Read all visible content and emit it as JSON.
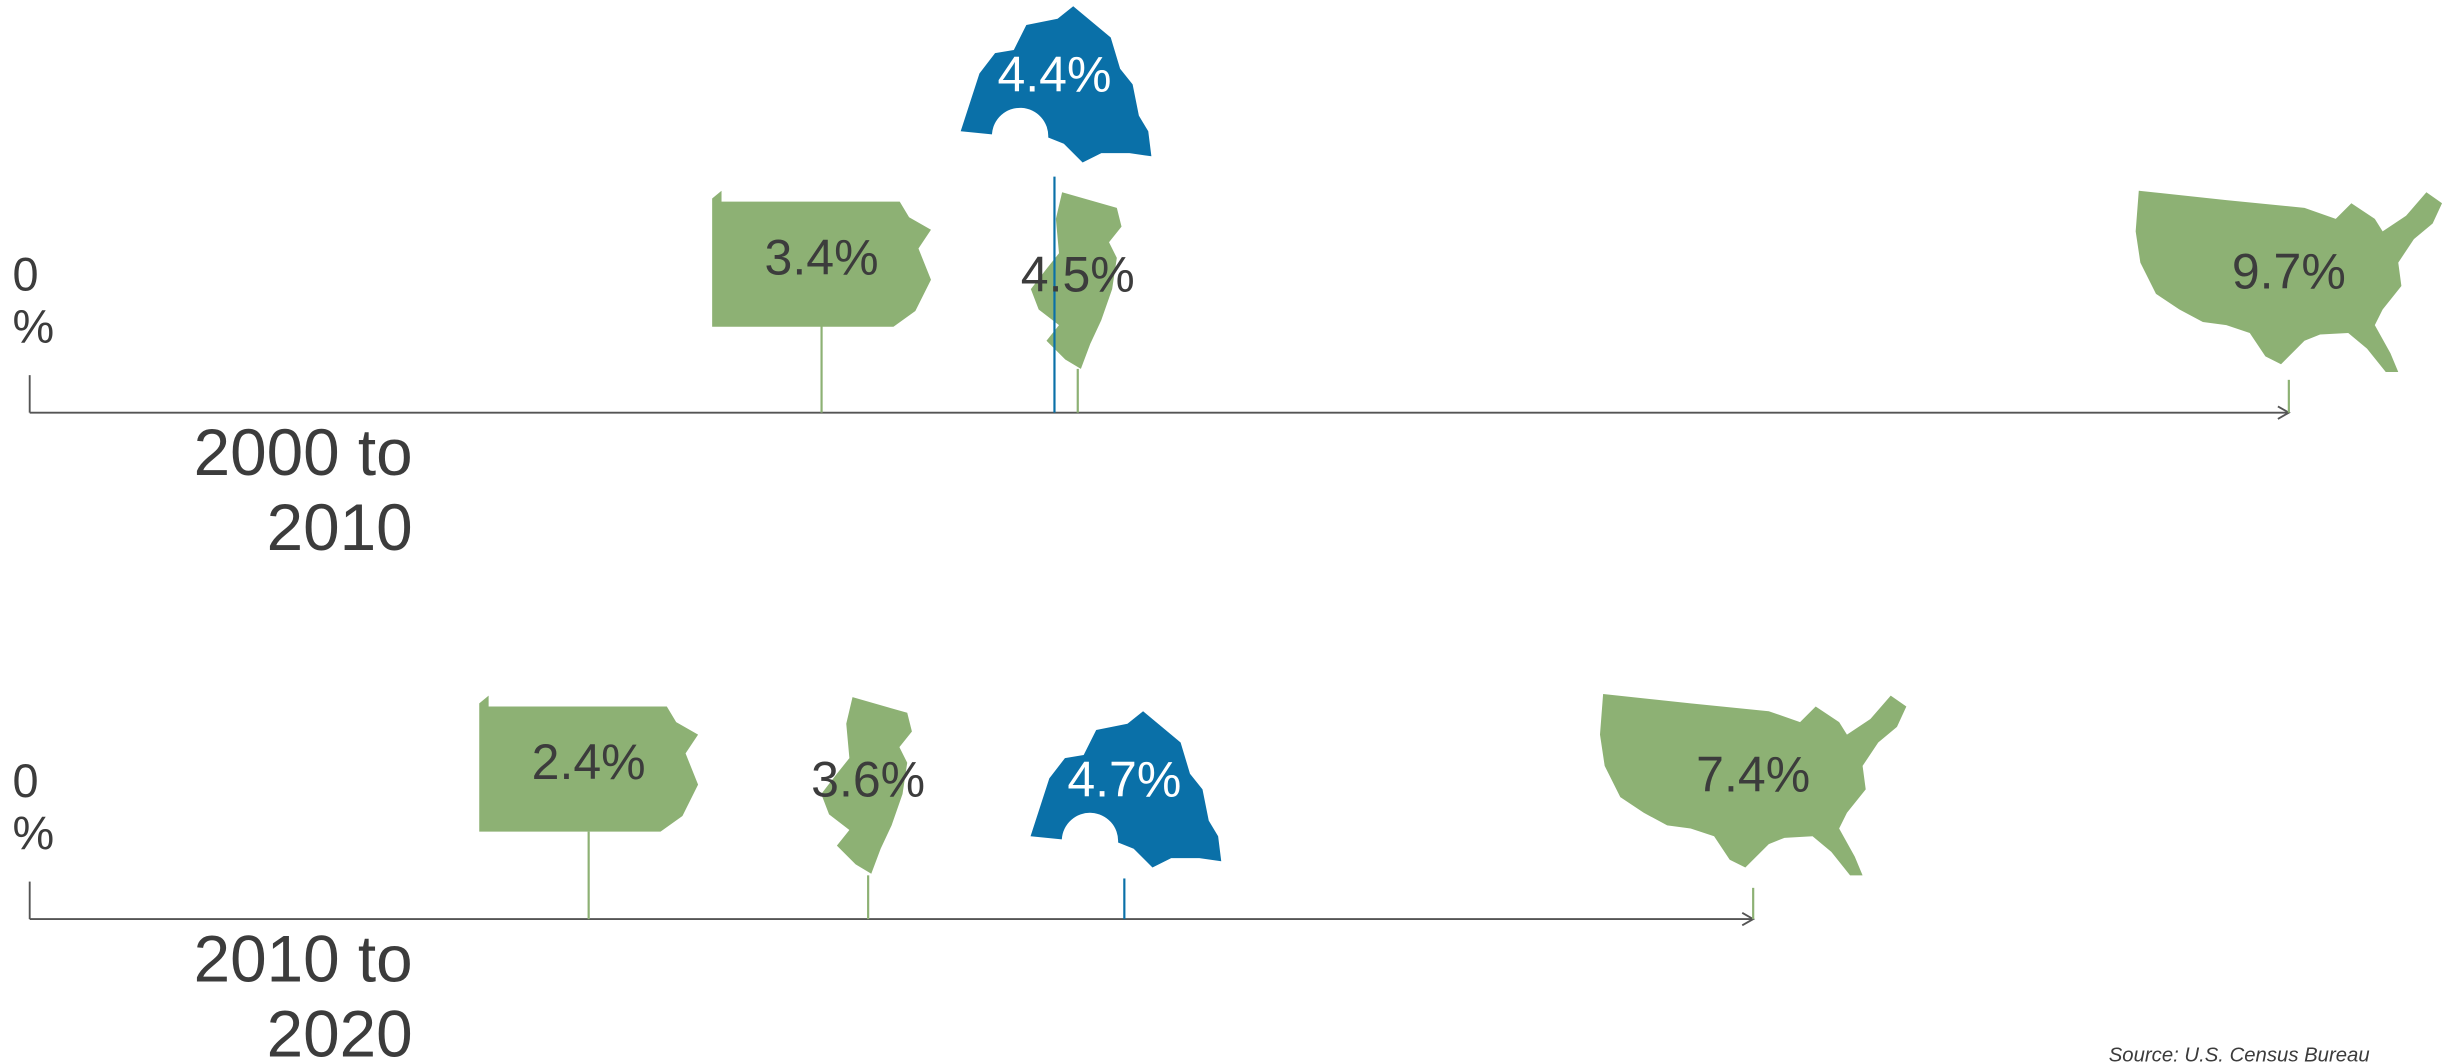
{
  "source": "Source: U.S. Census Bureau",
  "chart_data": [
    {
      "type": "lollipop",
      "label": "2000 to 2010",
      "values": [
        3.4,
        4.5,
        4.4,
        9.7
      ],
      "value_labels": [
        "3.4%",
        "4.5%",
        "4.4%",
        "9.7%"
      ],
      "colors": [
        "#8db174",
        "#8db174",
        "#0a70a8",
        "#8db174"
      ],
      "xlim": [
        0,
        9.7
      ],
      "xticks": [
        {
          "value": 0,
          "label": "0 %"
        }
      ]
    },
    {
      "type": "lollipop",
      "label": "2010 to 2020",
      "values": [
        2.4,
        3.6,
        4.7,
        7.4
      ],
      "value_labels": [
        "2.4%",
        "3.6%",
        "4.7%",
        "7.4%"
      ],
      "colors": [
        "#8db174",
        "#8db174",
        "#0a70a8",
        "#8db174"
      ],
      "xlim": [
        0,
        7.4
      ],
      "xticks": [
        {
          "value": 0,
          "label": "0 %"
        }
      ]
    }
  ]
}
